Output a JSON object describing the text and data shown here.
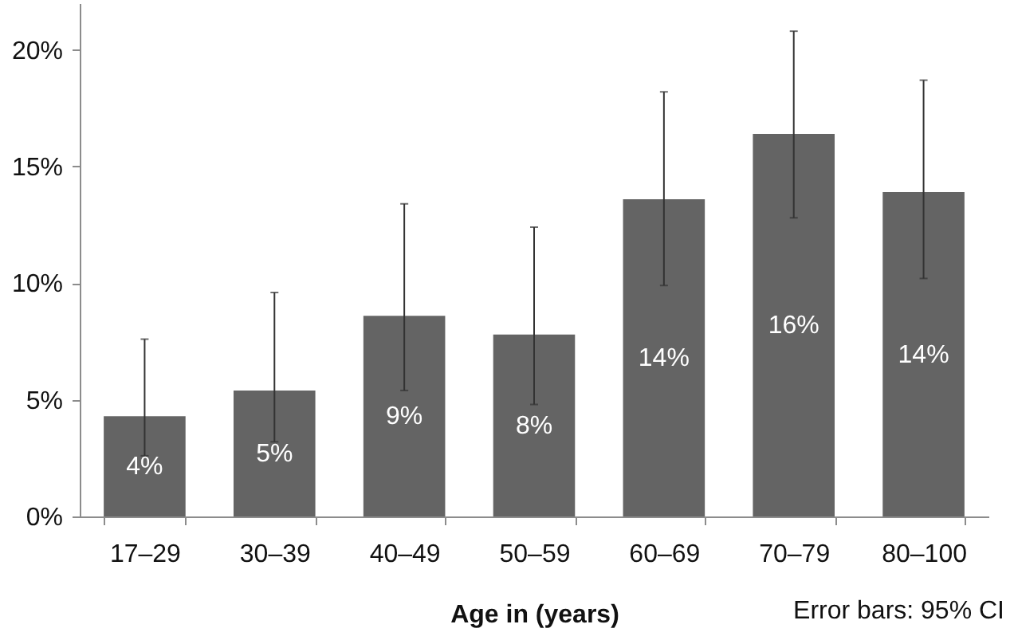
{
  "chart_data": {
    "type": "bar",
    "xlabel": "Age in (years)",
    "categories": [
      "17–29",
      "30–39",
      "40–49",
      "50–59",
      "60–69",
      "70–79",
      "80–100"
    ],
    "values": [
      4.3,
      5.4,
      8.6,
      7.8,
      13.6,
      16.4,
      13.9
    ],
    "value_labels": [
      "4%",
      "5%",
      "9%",
      "8%",
      "14%",
      "16%",
      "14%"
    ],
    "errors": [
      [
        2.6,
        7.6
      ],
      [
        3.2,
        9.6
      ],
      [
        5.4,
        13.4
      ],
      [
        4.8,
        12.4
      ],
      [
        9.9,
        18.2
      ],
      [
        12.8,
        20.8
      ],
      [
        10.2,
        18.7
      ]
    ],
    "color": "#646464",
    "ylim": [
      0,
      22
    ],
    "yticks": [
      {
        "value": 0,
        "label": "0%"
      },
      {
        "value": 5,
        "label": "5%"
      },
      {
        "value": 10,
        "label": "10%"
      },
      {
        "value": 15,
        "label": "15%"
      },
      {
        "value": 20,
        "label": "20%"
      }
    ],
    "grid": false,
    "annotations": [
      "Error bars: 95% CI"
    ]
  }
}
